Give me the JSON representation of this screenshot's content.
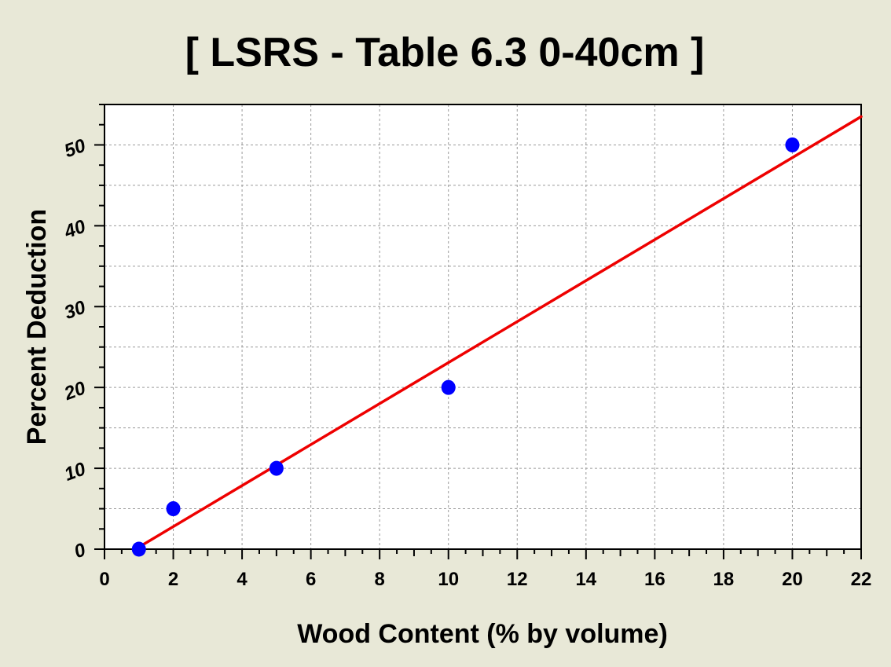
{
  "chart_data": {
    "type": "scatter",
    "title": "[ LSRS - Table 6.3 0-40cm ]",
    "xlabel": "Wood Content (% by volume)",
    "ylabel": "Percent Deduction",
    "xlim": [
      0,
      22
    ],
    "ylim": [
      0,
      55
    ],
    "xticks": [
      0,
      2,
      4,
      6,
      8,
      10,
      12,
      14,
      16,
      18,
      20,
      22
    ],
    "yticks": [
      0,
      10,
      20,
      30,
      40,
      50
    ],
    "grid": true,
    "legend": "none",
    "series": [
      {
        "kind": "points",
        "x": [
          1,
          2,
          5,
          10,
          20
        ],
        "y": [
          0,
          5,
          10,
          20,
          50
        ]
      },
      {
        "kind": "fit-line",
        "x": [
          0.9,
          22
        ],
        "y": [
          0,
          53.5
        ]
      }
    ],
    "colors": {
      "points": "#0000ff",
      "line": "#ee0000",
      "grid": "#9a9a9a",
      "plot_bg": "#ffffff",
      "page_bg": "#e8e8d7"
    }
  }
}
